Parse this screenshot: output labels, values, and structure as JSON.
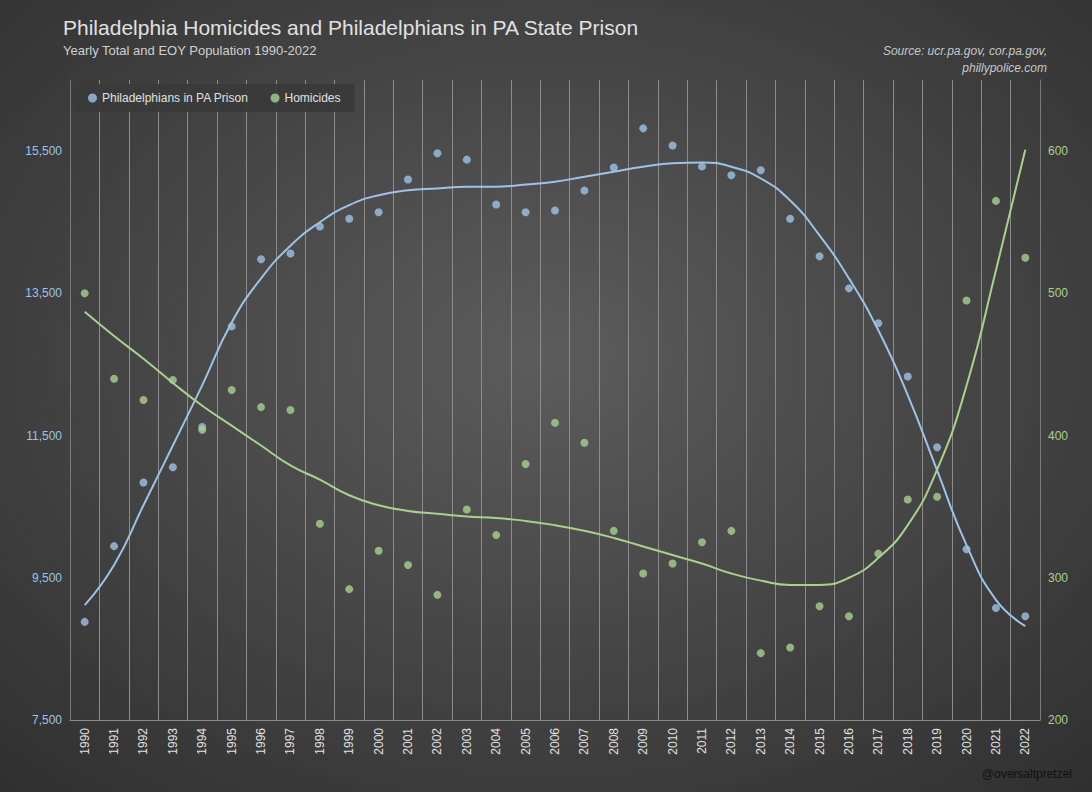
{
  "chart_data": {
    "type": "scatter",
    "title": "Philadelphia Homicides and Philadelphians in PA State Prison",
    "subtitle": "Yearly Total and EOY Population 1990-2022",
    "annotations": [
      "Source: ucr.pa.gov, cor.pa.gov,\nphillypolice.com",
      "@oversaltpretzel"
    ],
    "categories": [
      "1990",
      "1991",
      "1992",
      "1993",
      "1994",
      "1995",
      "1996",
      "1997",
      "1998",
      "1999",
      "2000",
      "2001",
      "2002",
      "2003",
      "2004",
      "2005",
      "2006",
      "2007",
      "2008",
      "2009",
      "2010",
      "2011",
      "2012",
      "2013",
      "2014",
      "2015",
      "2016",
      "2017",
      "2018",
      "2019",
      "2020",
      "2021",
      "2022"
    ],
    "series": [
      {
        "name": "Philadelphians in PA Prison",
        "color": "#9dc3e6",
        "values": [
          8880,
          9945,
          10840,
          11055,
          11620,
          13035,
          13980,
          14060,
          14440,
          14550,
          14640,
          15100,
          15470,
          15380,
          14750,
          14640,
          14665,
          14945,
          15270,
          15820,
          15580,
          15285,
          15160,
          15230,
          14550,
          14020,
          13570,
          13080,
          12330,
          11335,
          9900,
          9075,
          8960
        ],
        "trend": [
          9115,
          9680,
          10520,
          11360,
          12210,
          13090,
          13710,
          14170,
          14500,
          14740,
          14880,
          14950,
          14975,
          15000,
          15000,
          15030,
          15070,
          15140,
          15210,
          15280,
          15330,
          15340,
          15280,
          15115,
          14805,
          14315,
          13710,
          12980,
          12070,
          11010,
          9960,
          9190,
          8820
        ]
      },
      {
        "name": "Homicides",
        "color": "#a9d18e",
        "axis": "y2",
        "values": [
          500,
          440,
          425,
          439,
          404,
          432,
          420,
          418,
          338,
          292,
          319,
          309,
          288,
          348,
          330,
          380,
          409,
          395,
          333,
          303,
          310,
          325,
          333,
          247,
          251,
          280,
          273,
          317,
          355,
          357,
          495,
          565,
          525
        ],
        "trend": [
          487,
          470,
          454,
          437,
          421,
          407,
          393,
          379,
          369,
          358,
          351,
          347,
          345,
          343,
          342,
          340,
          337,
          333,
          328,
          322,
          316,
          310,
          303,
          298,
          295,
          295,
          300,
          314,
          337,
          376,
          435,
          516,
          601
        ]
      }
    ],
    "ylim": [
      7500,
      16500
    ],
    "yticks": [
      {
        "value": 7500,
        "label": "7,500"
      },
      {
        "value": 9500,
        "label": "9,500"
      },
      {
        "value": 11500,
        "label": "11,500"
      },
      {
        "value": 13500,
        "label": "13,500"
      },
      {
        "value": 15500,
        "label": "15,500"
      }
    ],
    "y2lim": [
      200,
      650
    ],
    "y2ticks": [
      200,
      300,
      400,
      500,
      600
    ],
    "grid": true,
    "legend": "upper left",
    "marker": "circle",
    "line_style": "smooth"
  }
}
